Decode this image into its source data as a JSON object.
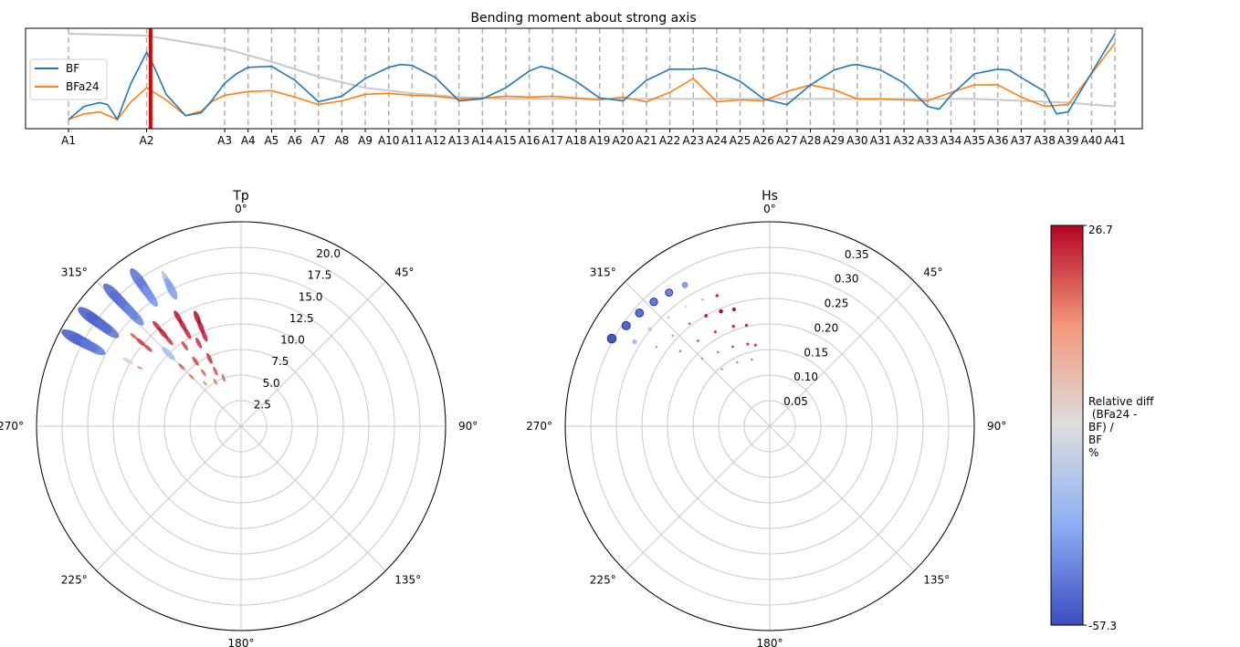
{
  "chart_data": [
    {
      "type": "line",
      "title": "Bending moment about strong axis",
      "xlabel": "",
      "ylabel": "",
      "categories": [
        "A1",
        "A2",
        "A3",
        "A4",
        "A5",
        "A6",
        "A7",
        "A8",
        "A9",
        "A10",
        "A11",
        "A12",
        "A13",
        "A14",
        "A15",
        "A16",
        "A17",
        "A18",
        "A19",
        "A20",
        "A21",
        "A22",
        "A23",
        "A24",
        "A25",
        "A26",
        "A27",
        "A28",
        "A29",
        "A30",
        "A31",
        "A32",
        "A33",
        "A34",
        "A35",
        "A36",
        "A37",
        "A38",
        "A39",
        "A40",
        "A41"
      ],
      "category_positions": [
        0.0,
        2.0,
        4.0,
        4.6,
        5.2,
        5.8,
        6.4,
        7.0,
        7.6,
        8.2,
        8.8,
        9.4,
        10.0,
        10.6,
        11.2,
        11.8,
        12.4,
        13.0,
        13.6,
        14.2,
        14.8,
        15.4,
        16.0,
        16.6,
        17.2,
        17.8,
        18.4,
        19.0,
        19.6,
        20.2,
        20.8,
        21.4,
        22.0,
        22.6,
        23.2,
        23.8,
        24.4,
        25.0,
        25.6,
        26.2,
        26.8
      ],
      "ylim": [
        0,
        1
      ],
      "grid": false,
      "legend": "center-left",
      "marker_position": 2.1,
      "marker_color": "#dd0000",
      "series": [
        {
          "name": "BF",
          "color": "#1f77b4",
          "x": [
            0.0,
            0.4,
            0.8,
            1.0,
            1.25,
            1.6,
            2.0,
            2.2,
            2.5,
            3.0,
            3.4,
            3.7,
            4.0,
            4.3,
            4.6,
            5.2,
            5.8,
            6.4,
            7.0,
            7.6,
            8.2,
            8.5,
            8.8,
            9.4,
            10.0,
            10.6,
            11.2,
            11.8,
            12.1,
            12.4,
            13.0,
            13.6,
            14.2,
            14.8,
            15.4,
            16.0,
            16.3,
            16.6,
            17.2,
            17.8,
            18.4,
            19.0,
            19.6,
            20.0,
            20.2,
            20.8,
            21.4,
            22.0,
            22.3,
            22.6,
            23.2,
            23.8,
            24.1,
            24.4,
            25.0,
            25.3,
            25.6,
            26.2,
            26.8
          ],
          "values": [
            0.06,
            0.2,
            0.24,
            0.22,
            0.06,
            0.45,
            0.78,
            0.62,
            0.33,
            0.1,
            0.13,
            0.28,
            0.45,
            0.55,
            0.62,
            0.63,
            0.48,
            0.25,
            0.31,
            0.5,
            0.62,
            0.65,
            0.64,
            0.51,
            0.26,
            0.28,
            0.4,
            0.58,
            0.63,
            0.6,
            0.47,
            0.29,
            0.26,
            0.48,
            0.6,
            0.6,
            0.61,
            0.58,
            0.47,
            0.28,
            0.22,
            0.43,
            0.59,
            0.64,
            0.65,
            0.59,
            0.45,
            0.2,
            0.17,
            0.32,
            0.55,
            0.6,
            0.59,
            0.51,
            0.36,
            0.12,
            0.14,
            0.56,
            0.98
          ]
        },
        {
          "name": "BFa24",
          "color": "#ff7f0e",
          "x": [
            0.0,
            0.4,
            0.8,
            1.25,
            1.6,
            2.0,
            2.5,
            3.0,
            3.4,
            3.7,
            4.0,
            4.6,
            5.2,
            5.8,
            6.4,
            7.0,
            7.6,
            8.2,
            8.8,
            9.4,
            10.0,
            10.6,
            11.2,
            11.8,
            12.4,
            13.0,
            13.6,
            14.2,
            14.8,
            15.4,
            16.0,
            16.6,
            17.2,
            17.8,
            18.4,
            19.0,
            19.6,
            20.2,
            20.8,
            21.4,
            22.0,
            22.6,
            23.2,
            23.8,
            24.4,
            25.0,
            25.6,
            26.2,
            26.8
          ],
          "values": [
            0.06,
            0.12,
            0.14,
            0.06,
            0.25,
            0.4,
            0.27,
            0.1,
            0.15,
            0.26,
            0.32,
            0.36,
            0.37,
            0.3,
            0.22,
            0.26,
            0.33,
            0.34,
            0.32,
            0.31,
            0.28,
            0.29,
            0.31,
            0.3,
            0.31,
            0.29,
            0.27,
            0.3,
            0.25,
            0.35,
            0.5,
            0.25,
            0.27,
            0.26,
            0.36,
            0.43,
            0.38,
            0.28,
            0.28,
            0.27,
            0.26,
            0.35,
            0.43,
            0.43,
            0.3,
            0.2,
            0.22,
            0.55,
            0.88
          ]
        },
        {
          "name": "",
          "color": "#c8c8c8",
          "x": [
            0.0,
            2.0,
            4.0,
            5.2,
            6.4,
            7.6,
            8.8,
            10.0,
            11.2,
            12.4,
            13.6,
            14.8,
            16.0,
            17.2,
            18.4,
            19.6,
            20.8,
            22.0,
            23.2,
            24.4,
            25.6,
            26.8
          ],
          "values": [
            0.98,
            0.96,
            0.82,
            0.68,
            0.52,
            0.4,
            0.34,
            0.3,
            0.28,
            0.28,
            0.28,
            0.28,
            0.28,
            0.28,
            0.28,
            0.28,
            0.28,
            0.28,
            0.28,
            0.26,
            0.24,
            0.2
          ]
        }
      ]
    },
    {
      "type": "scatter",
      "projection": "polar",
      "title": "Tp",
      "rlim": [
        0,
        21.9
      ],
      "r_ticks": [
        "2.5",
        "5.0",
        "7.5",
        "10.0",
        "12.5",
        "15.0",
        "17.5",
        "20.0"
      ],
      "angle_labels": [
        "0°",
        "45°",
        "90°",
        "135°",
        "180°",
        "225°",
        "270°",
        "315°"
      ],
      "angle_direction": "clockwise",
      "angle_zero": "top",
      "grid": true,
      "points": [
        {
          "theta": 316,
          "r": 19.5,
          "v": -52
        },
        {
          "theta": 316,
          "r": 18.5,
          "v": -50
        },
        {
          "theta": 316,
          "r": 17.5,
          "v": -48
        },
        {
          "theta": 316,
          "r": 16.5,
          "v": -45
        },
        {
          "theta": 306,
          "r": 19.8,
          "v": -55
        },
        {
          "theta": 306,
          "r": 18.8,
          "v": -53
        },
        {
          "theta": 306,
          "r": 17.8,
          "v": -50
        },
        {
          "theta": 298,
          "r": 20.0,
          "v": -55
        },
        {
          "theta": 298,
          "r": 19.0,
          "v": -52
        },
        {
          "theta": 298,
          "r": 18.0,
          "v": -48
        },
        {
          "theta": 325,
          "r": 19.0,
          "v": -50
        },
        {
          "theta": 325,
          "r": 18.0,
          "v": -47
        },
        {
          "theta": 325,
          "r": 17.0,
          "v": -42
        },
        {
          "theta": 333,
          "r": 18.5,
          "v": 5
        },
        {
          "theta": 333,
          "r": 17.5,
          "v": -30
        },
        {
          "theta": 333,
          "r": 16.5,
          "v": -40
        },
        {
          "theta": 310,
          "r": 15.0,
          "v": 15
        },
        {
          "theta": 310,
          "r": 14.0,
          "v": 20
        },
        {
          "theta": 310,
          "r": 13.0,
          "v": 18
        },
        {
          "theta": 320,
          "r": 14.0,
          "v": 22
        },
        {
          "theta": 320,
          "r": 13.0,
          "v": 24
        },
        {
          "theta": 320,
          "r": 12.0,
          "v": 20
        },
        {
          "theta": 330,
          "r": 13.5,
          "v": 25
        },
        {
          "theta": 330,
          "r": 12.5,
          "v": 24
        },
        {
          "theta": 330,
          "r": 11.5,
          "v": 22
        },
        {
          "theta": 338,
          "r": 12.5,
          "v": 26
        },
        {
          "theta": 338,
          "r": 11.5,
          "v": 25
        },
        {
          "theta": 338,
          "r": 10.5,
          "v": 23
        },
        {
          "theta": 300,
          "r": 14.0,
          "v": -20
        },
        {
          "theta": 300,
          "r": 12.5,
          "v": 10
        },
        {
          "theta": 315,
          "r": 11.0,
          "v": -30
        },
        {
          "theta": 325,
          "r": 10.5,
          "v": 18
        },
        {
          "theta": 333,
          "r": 10.0,
          "v": 20
        },
        {
          "theta": 315,
          "r": 9.0,
          "v": 15
        },
        {
          "theta": 325,
          "r": 8.5,
          "v": 18
        },
        {
          "theta": 335,
          "r": 8.0,
          "v": 20
        },
        {
          "theta": 315,
          "r": 7.5,
          "v": 12
        },
        {
          "theta": 325,
          "r": 7.0,
          "v": 14
        },
        {
          "theta": 335,
          "r": 6.5,
          "v": 16
        },
        {
          "theta": 320,
          "r": 6.0,
          "v": 10
        },
        {
          "theta": 330,
          "r": 5.5,
          "v": 12
        },
        {
          "theta": 340,
          "r": 5.5,
          "v": 14
        }
      ]
    },
    {
      "type": "scatter",
      "projection": "polar",
      "title": "Hs",
      "rlim": [
        0,
        0.385
      ],
      "r_ticks": [
        "0.05",
        "0.10",
        "0.15",
        "0.20",
        "0.25",
        "0.30",
        "0.35"
      ],
      "angle_labels": [
        "0°",
        "45°",
        "90°",
        "135°",
        "180°",
        "225°",
        "270°",
        "315°"
      ],
      "angle_direction": "clockwise",
      "angle_zero": "top",
      "grid": true,
      "points": [
        {
          "theta": 299,
          "r": 0.34,
          "v": -55
        },
        {
          "theta": 305,
          "r": 0.33,
          "v": -52
        },
        {
          "theta": 311,
          "r": 0.325,
          "v": -50
        },
        {
          "theta": 317,
          "r": 0.32,
          "v": -48
        },
        {
          "theta": 323,
          "r": 0.315,
          "v": -45
        },
        {
          "theta": 329,
          "r": 0.31,
          "v": -40
        },
        {
          "theta": 302,
          "r": 0.3,
          "v": -30
        },
        {
          "theta": 309,
          "r": 0.29,
          "v": -25
        },
        {
          "theta": 317,
          "r": 0.28,
          "v": -20
        },
        {
          "theta": 325,
          "r": 0.275,
          "v": -10
        },
        {
          "theta": 332,
          "r": 0.27,
          "v": 5
        },
        {
          "theta": 338,
          "r": 0.265,
          "v": 20
        },
        {
          "theta": 305,
          "r": 0.26,
          "v": 10
        },
        {
          "theta": 313,
          "r": 0.25,
          "v": 12
        },
        {
          "theta": 322,
          "r": 0.245,
          "v": 15
        },
        {
          "theta": 330,
          "r": 0.24,
          "v": 22
        },
        {
          "theta": 337,
          "r": 0.235,
          "v": 26
        },
        {
          "theta": 343,
          "r": 0.23,
          "v": 24
        },
        {
          "theta": 310,
          "r": 0.22,
          "v": 14
        },
        {
          "theta": 320,
          "r": 0.21,
          "v": 16
        },
        {
          "theta": 330,
          "r": 0.205,
          "v": 18
        },
        {
          "theta": 340,
          "r": 0.2,
          "v": 20
        },
        {
          "theta": 347,
          "r": 0.195,
          "v": 20
        },
        {
          "theta": 315,
          "r": 0.18,
          "v": 12
        },
        {
          "theta": 325,
          "r": 0.17,
          "v": 14
        },
        {
          "theta": 335,
          "r": 0.165,
          "v": 16
        },
        {
          "theta": 345,
          "r": 0.16,
          "v": 18
        },
        {
          "theta": 350,
          "r": 0.155,
          "v": 18
        },
        {
          "theta": 320,
          "r": 0.14,
          "v": 10
        },
        {
          "theta": 333,
          "r": 0.135,
          "v": 12
        },
        {
          "theta": 345,
          "r": 0.13,
          "v": 14
        }
      ]
    }
  ],
  "colorbar": {
    "max_label": "26.7",
    "min_label": "-57.3",
    "min": -57.3,
    "max": 26.7,
    "label_lines": [
      "Relative diff",
      " (BFa24 -",
      "BF) /",
      "BF",
      "%"
    ],
    "colormap": "coolwarm"
  }
}
